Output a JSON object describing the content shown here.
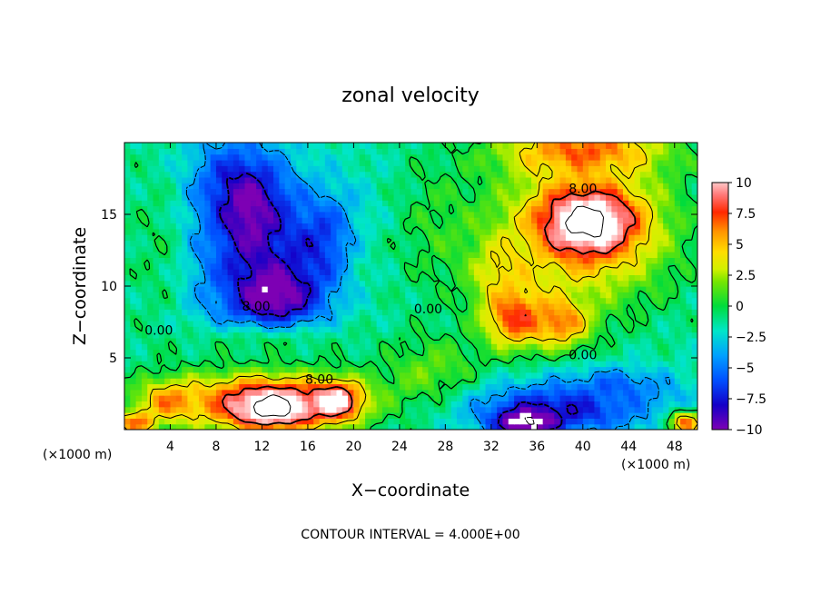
{
  "chart_data": {
    "type": "heatmap",
    "title": "zonal velocity",
    "xlabel": "X−coordinate",
    "ylabel": "Z−coordinate",
    "x_unit_left": "(×1000 m)",
    "x_unit_right": "(×1000 m)",
    "footer": "CONTOUR INTERVAL = 4.000E+00",
    "xlim": [
      0,
      50
    ],
    "ylim": [
      0,
      20
    ],
    "x_ticks": [
      4,
      8,
      12,
      16,
      20,
      24,
      28,
      32,
      36,
      40,
      44,
      48
    ],
    "y_ticks": [
      5,
      10,
      15
    ],
    "colorbar": {
      "min": -10,
      "max": 10,
      "tick_values": [
        10,
        7.5,
        5,
        2.5,
        0,
        -2.5,
        -5,
        -7.5,
        -10
      ],
      "tick_labels": [
        "10",
        "7.5",
        "5",
        "2.5",
        "0",
        "−2.5",
        "−5",
        "−7.5",
        "−10"
      ]
    },
    "contour_labels": [
      {
        "text": "8.00",
        "x": 40,
        "y": 16.5
      },
      {
        "text": "8.00",
        "x": 11.5,
        "y": 8.3
      },
      {
        "text": "0.00",
        "x": 3,
        "y": 6.6
      },
      {
        "text": "0.00",
        "x": 26.5,
        "y": 8.1
      },
      {
        "text": "0.00",
        "x": 40,
        "y": 4.9
      },
      {
        "text": "8.00",
        "x": 17,
        "y": 3.2
      }
    ],
    "features": [
      {
        "cx": 10,
        "cy": 15,
        "rx": 5,
        "ry": 5,
        "value": -14
      },
      {
        "cx": 13,
        "cy": 9.5,
        "rx": 5,
        "ry": 3,
        "value": -13
      },
      {
        "cx": 18,
        "cy": 13,
        "rx": 5,
        "ry": 4,
        "value": -9
      },
      {
        "cx": 7,
        "cy": 13,
        "rx": 4,
        "ry": 6,
        "value": -6
      },
      {
        "cx": 3,
        "cy": 13,
        "rx": 4,
        "ry": 8,
        "value": 0
      },
      {
        "cx": 22,
        "cy": 12,
        "rx": 4,
        "ry": 6,
        "value": -1
      },
      {
        "cx": 27,
        "cy": 14,
        "rx": 4,
        "ry": 6,
        "value": 0.5
      },
      {
        "cx": 27,
        "cy": 4,
        "rx": 5,
        "ry": 3,
        "value": 2
      },
      {
        "cx": 40,
        "cy": 14,
        "rx": 9,
        "ry": 6,
        "value": 7
      },
      {
        "cx": 40.5,
        "cy": 14.5,
        "rx": 4.5,
        "ry": 2.5,
        "value": 15
      },
      {
        "cx": 34,
        "cy": 8,
        "rx": 3,
        "ry": 2.5,
        "value": 10
      },
      {
        "cx": 38,
        "cy": 7.5,
        "rx": 3,
        "ry": 2,
        "value": 8
      },
      {
        "cx": 33,
        "cy": 11,
        "rx": 3,
        "ry": 3,
        "value": 5
      },
      {
        "cx": 12,
        "cy": 2,
        "rx": 10,
        "ry": 2.5,
        "value": 9
      },
      {
        "cx": 13,
        "cy": 1.5,
        "rx": 4,
        "ry": 1.5,
        "value": 15
      },
      {
        "cx": 18.5,
        "cy": 2,
        "rx": 2.5,
        "ry": 1.5,
        "value": 13
      },
      {
        "cx": 4,
        "cy": 2,
        "rx": 3,
        "ry": 1.5,
        "value": 7
      },
      {
        "cx": 38,
        "cy": 1.5,
        "rx": 9,
        "ry": 2,
        "value": -9
      },
      {
        "cx": 35,
        "cy": 0.5,
        "rx": 3,
        "ry": 1,
        "value": -14
      },
      {
        "cx": 43,
        "cy": 3,
        "rx": 5,
        "ry": 1.5,
        "value": -6
      },
      {
        "cx": 47,
        "cy": 1.5,
        "rx": 3,
        "ry": 1.5,
        "value": -4
      },
      {
        "cx": 49,
        "cy": 0.5,
        "rx": 2,
        "ry": 1,
        "value": 8
      },
      {
        "cx": 1,
        "cy": 0.5,
        "rx": 2,
        "ry": 1,
        "value": 8
      },
      {
        "cx": 40,
        "cy": 19.5,
        "rx": 8,
        "ry": 2,
        "value": 8
      },
      {
        "cx": 12,
        "cy": 6,
        "rx": 10,
        "ry": 1.5,
        "value": 0
      }
    ]
  }
}
